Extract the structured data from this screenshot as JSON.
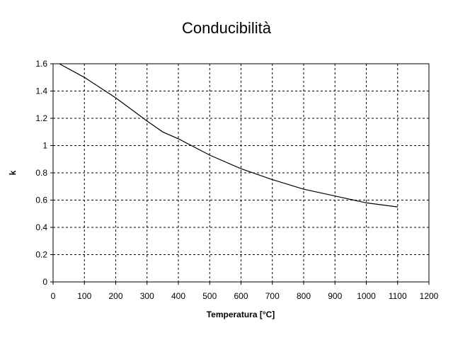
{
  "chart_data": {
    "type": "line",
    "title": "Conducibilità",
    "xlabel": "Temperatura [°C]",
    "ylabel": "k",
    "xlim": [
      0,
      1200
    ],
    "ylim": [
      0,
      1.6
    ],
    "x_ticks": [
      "0",
      "100",
      "200",
      "300",
      "400",
      "500",
      "600",
      "700",
      "800",
      "900",
      "1000",
      "1100",
      "1200"
    ],
    "y_ticks": [
      "0",
      "0.2",
      "0.4",
      "0.6",
      "0.8",
      "1",
      "1.2",
      "1.4",
      "1.6"
    ],
    "grid": true,
    "legend": "none",
    "series": [
      {
        "color": "#000000",
        "x": [
          20,
          100,
          200,
          300,
          350,
          400,
          500,
          600,
          700,
          800,
          900,
          1000,
          1100
        ],
        "y": [
          1.6,
          1.5,
          1.35,
          1.18,
          1.1,
          1.05,
          0.93,
          0.83,
          0.75,
          0.68,
          0.63,
          0.58,
          0.55
        ]
      }
    ]
  }
}
